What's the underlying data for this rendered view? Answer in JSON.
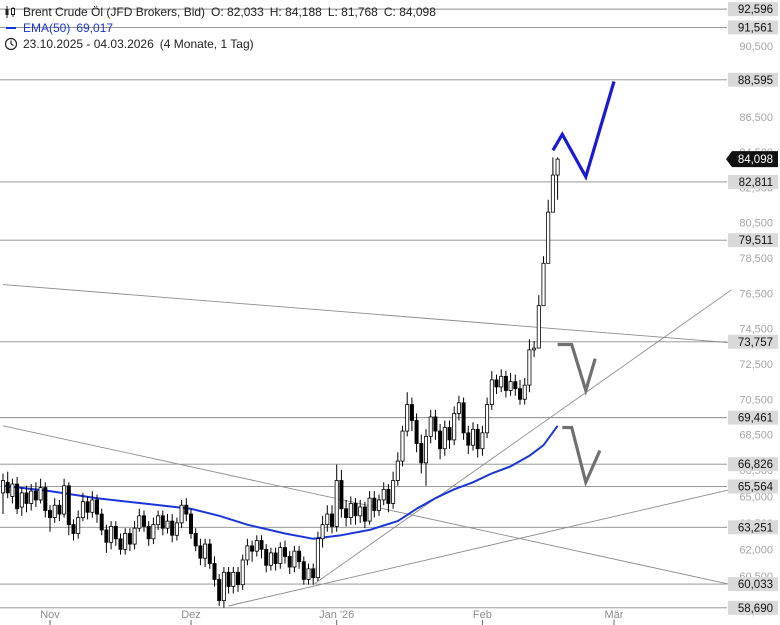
{
  "legend": {
    "instrument": "Brent Crude Öl (JFD Brokers, Bid)",
    "open": "O: 82,033",
    "high": "H: 84,188",
    "low": "L: 81,768",
    "close": "C: 84,098",
    "ema_label": "EMA(50)",
    "ema_value": "69,017",
    "range": "23.10.2025 - 04.03.2026",
    "period": "(4 Monate, 1 Tag)",
    "icons": [
      "candlestick-icon",
      "ema-line-icon",
      "clock-icon"
    ]
  },
  "colors": {
    "ema": "#1a36d9",
    "projection_up": "#1a1ad6",
    "projection_down": "#707070",
    "current_price_bg": "#111111",
    "level_bg": "#d9d9d9",
    "candle_up": "#ffffff",
    "candle_down": "#000000"
  },
  "chart_data": {
    "type": "candlestick",
    "ylim": [
      58.0,
      93.0
    ],
    "y_ticks": [
      "92,500",
      "90,500",
      "88,500",
      "86,500",
      "84,500",
      "82,500",
      "80,500",
      "78,500",
      "76,500",
      "74,500",
      "72,500",
      "70,500",
      "68,500",
      "66,500",
      "65,000",
      "63,500",
      "62,000",
      "60,500",
      "58,500"
    ],
    "x_ticks": [
      {
        "label": "Nov",
        "day": 10
      },
      {
        "label": "Dez",
        "day": 40
      },
      {
        "label": "Jan '26",
        "day": 71
      },
      {
        "label": "Feb",
        "day": 102
      },
      {
        "label": "Mär",
        "day": 130
      }
    ],
    "price_levels": [
      {
        "label": "92,596",
        "value": 92.596
      },
      {
        "label": "91,561",
        "value": 91.561
      },
      {
        "label": "88,595",
        "value": 88.595
      },
      {
        "label": "82,811",
        "value": 82.811
      },
      {
        "label": "79,511",
        "value": 79.511
      },
      {
        "label": "73,757",
        "value": 73.757
      },
      {
        "label": "69,461",
        "value": 69.461
      },
      {
        "label": "66,826",
        "value": 66.826
      },
      {
        "label": "65,564",
        "value": 65.564
      },
      {
        "label": "63,251",
        "value": 63.251
      },
      {
        "label": "60,033",
        "value": 60.033
      },
      {
        "label": "58,690",
        "value": 58.69
      }
    ],
    "current_price": {
      "label": "84,098",
      "value": 84.098
    },
    "candles": [
      [
        0,
        65.2,
        65.9,
        66.3,
        64.0
      ],
      [
        1,
        65.8,
        65.2,
        66.4,
        64.9
      ],
      [
        2,
        65.0,
        65.7,
        66.0,
        64.6
      ],
      [
        3,
        65.7,
        64.3,
        66.1,
        64.0
      ],
      [
        4,
        64.4,
        65.2,
        65.5,
        63.9
      ],
      [
        5,
        65.2,
        64.6,
        65.6,
        64.1
      ],
      [
        6,
        64.6,
        65.3,
        65.7,
        64.2
      ],
      [
        7,
        65.3,
        64.8,
        65.8,
        64.4
      ],
      [
        8,
        64.8,
        65.5,
        66.0,
        64.6
      ],
      [
        9,
        65.5,
        64.2,
        65.8,
        63.8
      ],
      [
        10,
        64.2,
        63.8,
        64.5,
        63.0
      ],
      [
        11,
        63.8,
        64.5,
        64.9,
        63.5
      ],
      [
        12,
        64.5,
        64.0,
        64.8,
        63.6
      ],
      [
        13,
        64.0,
        65.6,
        66.0,
        63.8
      ],
      [
        14,
        65.6,
        63.4,
        65.8,
        62.8
      ],
      [
        15,
        63.4,
        62.9,
        63.7,
        62.5
      ],
      [
        16,
        62.9,
        63.8,
        64.2,
        62.6
      ],
      [
        17,
        63.8,
        64.7,
        65.2,
        63.6
      ],
      [
        18,
        64.7,
        64.1,
        65.0,
        63.7
      ],
      [
        19,
        64.1,
        64.8,
        65.3,
        63.8
      ],
      [
        20,
        64.8,
        64.0,
        65.1,
        63.5
      ],
      [
        21,
        64.0,
        63.1,
        64.3,
        62.8
      ],
      [
        22,
        63.1,
        62.4,
        63.4,
        61.8
      ],
      [
        23,
        62.4,
        63.3,
        63.6,
        62.0
      ],
      [
        24,
        63.3,
        62.6,
        63.6,
        62.2
      ],
      [
        25,
        62.6,
        62.0,
        62.9,
        61.7
      ],
      [
        26,
        62.0,
        62.9,
        63.2,
        61.7
      ],
      [
        27,
        62.9,
        62.3,
        63.2,
        61.9
      ],
      [
        28,
        62.3,
        63.2,
        63.6,
        62.0
      ],
      [
        29,
        63.2,
        63.9,
        64.3,
        63.0
      ],
      [
        30,
        63.9,
        63.3,
        64.2,
        63.0
      ],
      [
        31,
        63.3,
        62.6,
        63.6,
        62.2
      ],
      [
        32,
        62.6,
        63.4,
        63.8,
        62.3
      ],
      [
        33,
        63.4,
        63.9,
        64.2,
        63.1
      ],
      [
        34,
        63.9,
        63.2,
        64.2,
        62.8
      ],
      [
        35,
        63.2,
        63.6,
        64.0,
        62.9
      ],
      [
        36,
        63.6,
        62.8,
        64.0,
        62.4
      ],
      [
        37,
        62.8,
        63.5,
        63.8,
        62.5
      ],
      [
        38,
        63.5,
        64.5,
        64.8,
        63.2
      ],
      [
        39,
        64.5,
        64.0,
        64.9,
        63.6
      ],
      [
        40,
        64.0,
        62.9,
        64.3,
        62.6
      ],
      [
        41,
        62.9,
        62.2,
        63.2,
        61.9
      ],
      [
        42,
        62.2,
        61.5,
        62.6,
        61.1
      ],
      [
        43,
        61.5,
        62.3,
        62.6,
        61.0
      ],
      [
        44,
        62.3,
        61.2,
        62.6,
        60.9
      ],
      [
        45,
        61.2,
        60.3,
        61.6,
        59.9
      ],
      [
        46,
        60.3,
        59.1,
        60.6,
        58.8
      ],
      [
        47,
        59.1,
        60.7,
        61.0,
        58.7
      ],
      [
        48,
        60.7,
        59.9,
        61.0,
        59.5
      ],
      [
        49,
        59.9,
        60.7,
        61.0,
        59.5
      ],
      [
        50,
        60.7,
        60.0,
        61.0,
        59.6
      ],
      [
        51,
        60.0,
        61.4,
        61.7,
        59.7
      ],
      [
        52,
        61.4,
        62.2,
        62.6,
        61.1
      ],
      [
        53,
        62.2,
        61.9,
        62.5,
        61.3
      ],
      [
        54,
        61.9,
        62.5,
        62.8,
        61.6
      ],
      [
        55,
        62.5,
        62.0,
        62.8,
        61.5
      ],
      [
        56,
        62.0,
        61.1,
        62.3,
        60.7
      ],
      [
        57,
        61.1,
        61.8,
        62.1,
        60.8
      ],
      [
        58,
        61.8,
        61.2,
        62.1,
        60.8
      ],
      [
        59,
        61.2,
        62.1,
        62.4,
        60.9
      ],
      [
        60,
        62.1,
        61.6,
        62.5,
        61.2
      ],
      [
        61,
        61.6,
        61.0,
        61.9,
        60.6
      ],
      [
        62,
        61.0,
        61.9,
        62.2,
        60.7
      ],
      [
        63,
        61.9,
        61.3,
        62.2,
        60.9
      ],
      [
        64,
        61.3,
        60.3,
        61.6,
        60.0
      ],
      [
        65,
        60.3,
        60.9,
        61.2,
        60.0
      ],
      [
        66,
        60.9,
        60.4,
        61.2,
        60.0
      ],
      [
        67,
        60.4,
        62.6,
        63.0,
        60.2
      ],
      [
        68,
        62.6,
        63.4,
        63.9,
        62.1
      ],
      [
        69,
        63.4,
        64.0,
        64.5,
        63.0
      ],
      [
        70,
        64.0,
        63.3,
        64.5,
        62.9
      ],
      [
        71,
        63.3,
        65.9,
        66.8,
        63.0
      ],
      [
        72,
        65.9,
        64.3,
        66.5,
        63.8
      ],
      [
        73,
        64.3,
        63.8,
        64.8,
        63.3
      ],
      [
        74,
        63.8,
        64.6,
        65.0,
        63.4
      ],
      [
        75,
        64.6,
        63.9,
        64.9,
        63.4
      ],
      [
        76,
        63.9,
        64.4,
        64.8,
        63.5
      ],
      [
        77,
        64.4,
        63.6,
        64.7,
        63.2
      ],
      [
        78,
        63.6,
        64.9,
        65.3,
        63.4
      ],
      [
        79,
        64.9,
        64.2,
        65.3,
        63.8
      ],
      [
        80,
        64.2,
        64.8,
        65.1,
        63.9
      ],
      [
        81,
        64.8,
        65.4,
        65.8,
        64.5
      ],
      [
        82,
        65.4,
        64.6,
        65.7,
        64.1
      ],
      [
        83,
        64.6,
        65.9,
        66.4,
        64.3
      ],
      [
        84,
        65.9,
        67.0,
        67.5,
        65.6
      ],
      [
        85,
        67.0,
        68.7,
        69.0,
        66.7
      ],
      [
        86,
        68.7,
        70.2,
        70.9,
        68.4
      ],
      [
        87,
        70.2,
        69.3,
        70.6,
        68.7
      ],
      [
        88,
        69.3,
        68.0,
        69.7,
        67.5
      ],
      [
        89,
        68.0,
        66.9,
        68.5,
        66.3
      ],
      [
        90,
        66.9,
        68.4,
        68.8,
        65.6
      ],
      [
        91,
        68.4,
        69.5,
        69.9,
        68.0
      ],
      [
        92,
        69.5,
        68.7,
        69.9,
        68.2
      ],
      [
        93,
        68.7,
        67.7,
        69.1,
        67.1
      ],
      [
        94,
        67.7,
        68.9,
        69.3,
        67.3
      ],
      [
        95,
        68.9,
        68.2,
        69.3,
        67.7
      ],
      [
        96,
        68.2,
        69.7,
        70.1,
        67.9
      ],
      [
        97,
        69.7,
        70.3,
        70.7,
        69.3
      ],
      [
        98,
        70.3,
        68.6,
        70.6,
        68.2
      ],
      [
        99,
        68.6,
        67.9,
        69.0,
        67.4
      ],
      [
        100,
        67.9,
        68.8,
        69.2,
        67.6
      ],
      [
        101,
        68.8,
        67.7,
        69.1,
        67.2
      ],
      [
        102,
        67.7,
        68.6,
        69.0,
        67.3
      ],
      [
        103,
        68.6,
        70.2,
        70.6,
        68.3
      ],
      [
        104,
        70.2,
        71.6,
        72.1,
        69.9
      ],
      [
        105,
        71.6,
        71.2,
        71.9,
        70.8
      ],
      [
        106,
        71.2,
        71.8,
        72.2,
        70.9
      ],
      [
        107,
        71.8,
        71.0,
        72.1,
        70.6
      ],
      [
        108,
        71.0,
        71.5,
        72.0,
        70.7
      ],
      [
        109,
        71.5,
        71.1,
        71.9,
        70.7
      ],
      [
        110,
        71.1,
        70.5,
        71.6,
        70.2
      ],
      [
        111,
        70.5,
        71.3,
        71.7,
        70.2
      ],
      [
        112,
        71.3,
        73.3,
        73.9,
        70.9
      ],
      [
        113,
        73.3,
        73.4,
        73.8,
        72.9
      ],
      [
        114,
        73.4,
        75.8,
        76.4,
        73.5
      ],
      [
        115,
        75.8,
        78.2,
        78.6,
        76.5
      ],
      [
        116,
        78.2,
        81.1,
        81.8,
        79.7
      ],
      [
        117,
        81.1,
        83.2,
        84.2,
        81.5
      ],
      [
        118,
        83.2,
        84.1,
        84.2,
        81.8
      ]
    ],
    "candle_days": [],
    "ema50": [
      [
        0,
        65.6
      ],
      [
        10,
        65.3
      ],
      [
        20,
        64.9
      ],
      [
        30,
        64.6
      ],
      [
        40,
        64.3
      ],
      [
        46,
        63.9
      ],
      [
        52,
        63.4
      ],
      [
        60,
        62.9
      ],
      [
        66,
        62.6
      ],
      [
        72,
        62.8
      ],
      [
        78,
        63.1
      ],
      [
        84,
        63.6
      ],
      [
        88,
        64.3
      ],
      [
        92,
        64.9
      ],
      [
        96,
        65.4
      ],
      [
        100,
        65.8
      ],
      [
        104,
        66.3
      ],
      [
        108,
        66.7
      ],
      [
        112,
        67.3
      ],
      [
        115,
        67.9
      ],
      [
        118,
        69.0
      ]
    ],
    "trendlines": [
      [
        [
          0,
          77.0
        ],
        [
          155,
          73.7
        ]
      ],
      [
        [
          0,
          69.0
        ],
        [
          155,
          60.0
        ]
      ],
      [
        [
          66,
          60.0
        ],
        [
          155,
          76.7
        ]
      ],
      [
        [
          48,
          58.8
        ],
        [
          155,
          65.4
        ]
      ]
    ],
    "projection_up": [
      [
        117,
        84.6
      ],
      [
        119,
        85.5
      ],
      [
        124,
        83.1
      ],
      [
        130,
        88.5
      ]
    ],
    "projection_down": [
      [
        [
          118,
          73.6
        ],
        [
          121,
          73.6
        ],
        [
          124,
          71.0
        ],
        [
          126,
          72.8
        ]
      ],
      [
        [
          119,
          68.9
        ],
        [
          121,
          68.9
        ],
        [
          124,
          65.8
        ],
        [
          127,
          67.6
        ]
      ]
    ]
  }
}
